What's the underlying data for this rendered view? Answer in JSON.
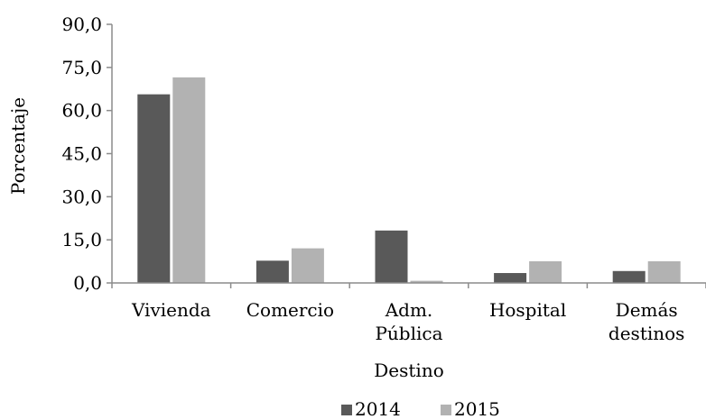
{
  "chart_data": {
    "type": "bar",
    "categories": [
      [
        "Vivienda"
      ],
      [
        "Comercio"
      ],
      [
        "Adm.",
        "Pública"
      ],
      [
        "Hospital"
      ],
      [
        "Demás",
        "destinos"
      ]
    ],
    "series": [
      {
        "name": "2014",
        "color": "#595959",
        "values": [
          65.8,
          7.9,
          18.4,
          3.6,
          4.3
        ]
      },
      {
        "name": "2015",
        "color": "#b2b2b2",
        "values": [
          71.7,
          12.2,
          0.9,
          7.7,
          7.7
        ]
      }
    ],
    "xlabel": "Destino",
    "ylabel": "Porcentaje",
    "ylim": [
      0,
      90
    ],
    "yticks": [
      "0,0",
      "15,0",
      "30,0",
      "45,0",
      "60,0",
      "75,0",
      "90,0"
    ],
    "grid": false,
    "legend_position": "bottom"
  }
}
